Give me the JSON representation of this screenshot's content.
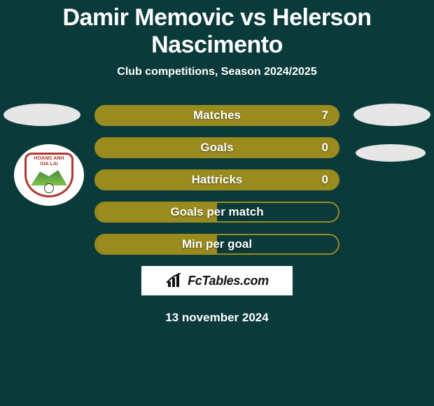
{
  "title": "Damir Memovic vs Helerson Nascimento",
  "subtitle": "Club competitions, Season 2024/2025",
  "colors": {
    "background": "#0a3a3a",
    "bar_fill": "#9a8b1f",
    "bar_border": "#9a8b1f",
    "text": "#ffffff",
    "brand_bg": "#ffffff",
    "brand_text": "#111111",
    "oval_bg": "#e6e6e6",
    "crest_border": "#b0382d"
  },
  "stats": [
    {
      "label": "Matches",
      "value": "7",
      "fill": "full",
      "show_value": true
    },
    {
      "label": "Goals",
      "value": "0",
      "fill": "full",
      "show_value": true
    },
    {
      "label": "Hattricks",
      "value": "0",
      "fill": "full",
      "show_value": true
    },
    {
      "label": "Goals per match",
      "value": "",
      "fill": "half",
      "show_value": false
    },
    {
      "label": "Min per goal",
      "value": "",
      "fill": "half",
      "show_value": false
    }
  ],
  "brand": "FcTables.com",
  "date": "13 november 2024",
  "crest": {
    "top_text": "HOANG ANH",
    "bottom_text": "GIA LAI"
  }
}
